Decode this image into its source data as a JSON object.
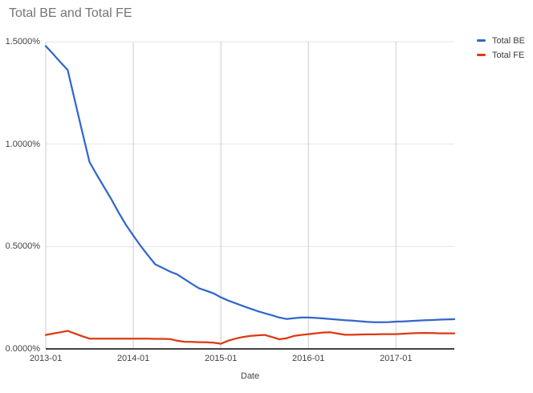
{
  "title": "Total BE and Total FE",
  "colors": {
    "background": "#ffffff",
    "title_text": "#757575",
    "axis_label_text": "#424242",
    "legend_text": "#3c3c3c",
    "grid_horizontal": "#e6e6e6",
    "grid_vertical": "#cccccc",
    "axis_line": "#424242",
    "series_total_be": "#3366cc",
    "series_total_fe": "#dc3912"
  },
  "legend": {
    "items": [
      {
        "label": "Total BE",
        "color": "#3366cc"
      },
      {
        "label": "Total FE",
        "color": "#dc3912"
      }
    ]
  },
  "chart_data": {
    "type": "line",
    "title": "Total BE and Total FE",
    "xlabel": "Date",
    "ylabel": "",
    "grid": true,
    "legend_position": "right",
    "ylim": [
      0,
      1.5
    ],
    "y_ticks": [
      {
        "value": 0.0,
        "label": "0.0000%"
      },
      {
        "value": 0.5,
        "label": "0.5000%"
      },
      {
        "value": 1.0,
        "label": "1.0000%"
      },
      {
        "value": 1.5,
        "label": "1.5000%"
      }
    ],
    "x_tick_labels": [
      "2013-01",
      "2014-01",
      "2015-01",
      "2016-01",
      "2017-01"
    ],
    "x": [
      "2013-01",
      "2013-02",
      "2013-03",
      "2013-04",
      "2013-05",
      "2013-06",
      "2013-07",
      "2013-08",
      "2013-09",
      "2013-10",
      "2013-11",
      "2013-12",
      "2014-01",
      "2014-02",
      "2014-03",
      "2014-04",
      "2014-05",
      "2014-06",
      "2014-07",
      "2014-08",
      "2014-09",
      "2014-10",
      "2014-11",
      "2014-12",
      "2015-01",
      "2015-02",
      "2015-03",
      "2015-04",
      "2015-05",
      "2015-06",
      "2015-07",
      "2015-08",
      "2015-09",
      "2015-10",
      "2015-11",
      "2015-12",
      "2016-01",
      "2016-02",
      "2016-03",
      "2016-04",
      "2016-05",
      "2016-06",
      "2016-07",
      "2016-08",
      "2016-09",
      "2016-10",
      "2016-11",
      "2016-12",
      "2017-01",
      "2017-02",
      "2017-03",
      "2017-04",
      "2017-05",
      "2017-06",
      "2017-07",
      "2017-08",
      "2017-09"
    ],
    "y_unit": "%",
    "series": [
      {
        "name": "Total BE",
        "color": "#3366cc",
        "values": [
          1.479,
          1.44,
          1.4,
          1.362,
          1.21,
          1.06,
          0.913,
          0.85,
          0.79,
          0.73,
          0.665,
          0.605,
          0.553,
          0.503,
          0.457,
          0.413,
          0.396,
          0.378,
          0.364,
          0.341,
          0.318,
          0.296,
          0.284,
          0.271,
          0.252,
          0.236,
          0.223,
          0.21,
          0.197,
          0.185,
          0.174,
          0.164,
          0.153,
          0.146,
          0.15,
          0.153,
          0.153,
          0.151,
          0.149,
          0.146,
          0.143,
          0.14,
          0.138,
          0.135,
          0.132,
          0.13,
          0.13,
          0.131,
          0.133,
          0.134,
          0.136,
          0.138,
          0.14,
          0.141,
          0.143,
          0.144,
          0.145
        ]
      },
      {
        "name": "Total FE",
        "color": "#dc3912",
        "values": [
          0.068,
          0.075,
          0.081,
          0.088,
          0.075,
          0.062,
          0.05,
          0.05,
          0.05,
          0.05,
          0.05,
          0.05,
          0.05,
          0.05,
          0.05,
          0.049,
          0.049,
          0.048,
          0.04,
          0.035,
          0.034,
          0.033,
          0.032,
          0.03,
          0.025,
          0.04,
          0.05,
          0.058,
          0.063,
          0.066,
          0.068,
          0.058,
          0.047,
          0.052,
          0.063,
          0.068,
          0.072,
          0.076,
          0.08,
          0.081,
          0.075,
          0.069,
          0.069,
          0.07,
          0.071,
          0.071,
          0.072,
          0.072,
          0.072,
          0.074,
          0.076,
          0.077,
          0.078,
          0.077,
          0.076,
          0.076,
          0.076
        ]
      }
    ]
  }
}
